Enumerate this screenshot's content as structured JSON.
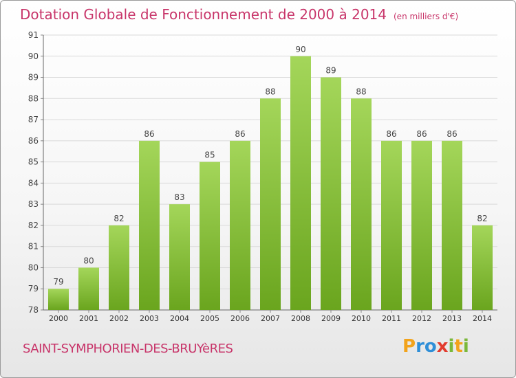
{
  "title": "Dotation Globale de Fonctionnement de 2000 à 2014",
  "unit": "(en milliers d'€)",
  "place": "SAINT-SYMPHORIEN-DES-BRUYèRES",
  "logo": {
    "letters": [
      "P",
      "r",
      "o",
      "x",
      "i",
      "t",
      "i"
    ],
    "colors": [
      "#f2a31b",
      "#2f8fd8",
      "#2f8fd8",
      "#e23b2e",
      "#7ab83a",
      "#f2a31b",
      "#7ab83a"
    ]
  },
  "chart_data": {
    "type": "bar",
    "categories": [
      "2000",
      "2001",
      "2002",
      "2003",
      "2004",
      "2005",
      "2006",
      "2007",
      "2008",
      "2009",
      "2010",
      "2011",
      "2012",
      "2013",
      "2014"
    ],
    "values": [
      79,
      80,
      82,
      86,
      83,
      85,
      86,
      88,
      90,
      89,
      88,
      86,
      86,
      86,
      82
    ],
    "yticks": [
      78,
      79,
      80,
      81,
      82,
      83,
      84,
      85,
      86,
      87,
      88,
      89,
      90,
      91
    ],
    "ylim": [
      78,
      91
    ],
    "grid": true,
    "bar_color_top": "#a4d65a",
    "bar_color_bottom": "#6aa51e",
    "grid_color": "#d9d9d9"
  }
}
